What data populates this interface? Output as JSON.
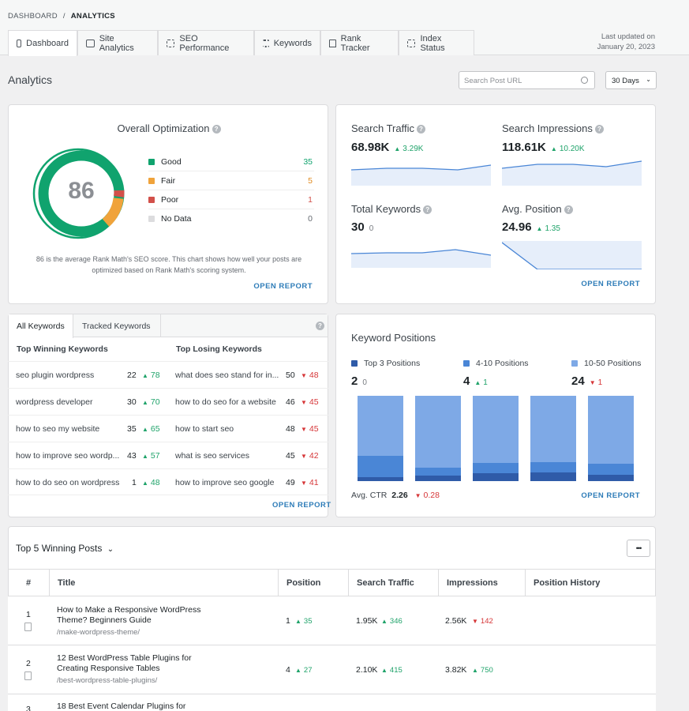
{
  "breadcrumb": {
    "root": "DASHBOARD",
    "sep": "/",
    "current": "ANALYTICS"
  },
  "tabs": [
    {
      "label": "Dashboard",
      "icon": "monitor-icon"
    },
    {
      "label": "Site Analytics",
      "icon": "chart-icon"
    },
    {
      "label": "SEO Performance",
      "icon": "target-icon"
    },
    {
      "label": "Keywords",
      "icon": "list-icon"
    },
    {
      "label": "Rank Tracker",
      "icon": "bookmark-icon"
    },
    {
      "label": "Index Status",
      "icon": "scan-icon"
    }
  ],
  "last_updated": {
    "label": "Last updated on",
    "date": "January 20, 2023"
  },
  "page_title": "Analytics",
  "search": {
    "placeholder": "Search Post URL"
  },
  "range_select": {
    "value": "30 Days"
  },
  "optimization": {
    "title": "Overall Optimization",
    "score": "86",
    "legend": [
      {
        "label": "Good",
        "value": "35",
        "color": "#10a36e"
      },
      {
        "label": "Fair",
        "value": "5",
        "color": "#f0a33b"
      },
      {
        "label": "Poor",
        "value": "1",
        "color": "#d2504a"
      },
      {
        "label": "No Data",
        "value": "0",
        "color": "#dcdcde"
      }
    ],
    "note_line1": "86 is the average Rank Math's SEO score. This chart shows how well your posts are",
    "note_line2": "optimized based on Rank Math's scoring system.",
    "open_report": "OPEN REPORT"
  },
  "stats": {
    "search_traffic": {
      "title": "Search Traffic",
      "value": "68.98K",
      "delta": "3.29K"
    },
    "search_impressions": {
      "title": "Search Impressions",
      "value": "118.61K",
      "delta": "10.20K"
    },
    "total_keywords": {
      "title": "Total Keywords",
      "value": "30",
      "delta": "0"
    },
    "avg_position": {
      "title": "Avg. Position",
      "value": "24.96",
      "delta": "1.35"
    },
    "open_report": "OPEN REPORT"
  },
  "keywords": {
    "tab_all": "All Keywords",
    "tab_tracked": "Tracked Keywords",
    "col_winning": "Top Winning Keywords",
    "col_losing": "Top Losing Keywords",
    "rows": [
      {
        "win_kw": "seo plugin wordpress",
        "win_pos": "22",
        "win_delta": "78",
        "lose_kw": "what does seo stand for in...",
        "lose_pos": "50",
        "lose_delta": "48"
      },
      {
        "win_kw": "wordpress developer",
        "win_pos": "30",
        "win_delta": "70",
        "lose_kw": "how to do seo for a website",
        "lose_pos": "46",
        "lose_delta": "45"
      },
      {
        "win_kw": "how to seo my website",
        "win_pos": "35",
        "win_delta": "65",
        "lose_kw": "how to start seo",
        "lose_pos": "48",
        "lose_delta": "45"
      },
      {
        "win_kw": "how to improve seo wordp...",
        "win_pos": "43",
        "win_delta": "57",
        "lose_kw": "what is seo services",
        "lose_pos": "45",
        "lose_delta": "42"
      },
      {
        "win_kw": "how to do seo on wordpress",
        "win_pos": "1",
        "win_delta": "48",
        "lose_kw": "how to improve seo google",
        "lose_pos": "49",
        "lose_delta": "41"
      }
    ],
    "open_report": "OPEN REPORT"
  },
  "positions": {
    "title": "Keyword Positions",
    "groups": [
      {
        "label": "Top 3 Positions",
        "value": "2",
        "delta": "0",
        "color": "#2f5ba8"
      },
      {
        "label": "4-10 Positions",
        "value": "4",
        "delta": "1",
        "color": "#4a86d6"
      },
      {
        "label": "10-50 Positions",
        "value": "24",
        "delta": "1",
        "color": "#7ea9e6"
      }
    ],
    "ctr_label": "Avg. CTR",
    "ctr_value": "2.26",
    "ctr_delta": "0.28",
    "open_report": "OPEN REPORT"
  },
  "posts": {
    "title": "Top 5 Winning Posts",
    "more_button": "•••",
    "columns": [
      "#",
      "Title",
      "Position",
      "Search Traffic",
      "Impressions",
      "Position History"
    ],
    "rows": [
      {
        "num": "1",
        "title_l1": "How to Make a Responsive WordPress",
        "title_l2": "Theme? Beginners Guide",
        "slug": "/make-wordpress-theme/",
        "pos": "1",
        "pos_delta": "35",
        "traffic": "1.95K",
        "traffic_delta": "346",
        "impr": "2.56K",
        "impr_delta": "142",
        "impr_dir": "down"
      },
      {
        "num": "2",
        "title_l1": "12 Best WordPress Table Plugins for",
        "title_l2": "Creating Responsive Tables",
        "slug": "/best-wordpress-table-plugins/",
        "pos": "4",
        "pos_delta": "27",
        "traffic": "2.10K",
        "traffic_delta": "415",
        "impr": "3.82K",
        "impr_delta": "750",
        "impr_dir": "up"
      },
      {
        "num": "3",
        "title_l1": "18 Best Event Calendar Plugins for",
        "title_l2": "",
        "slug": "",
        "pos": "",
        "pos_delta": "",
        "traffic": "",
        "traffic_delta": "",
        "impr": "",
        "impr_delta": "",
        "impr_dir": "up"
      }
    ]
  }
}
